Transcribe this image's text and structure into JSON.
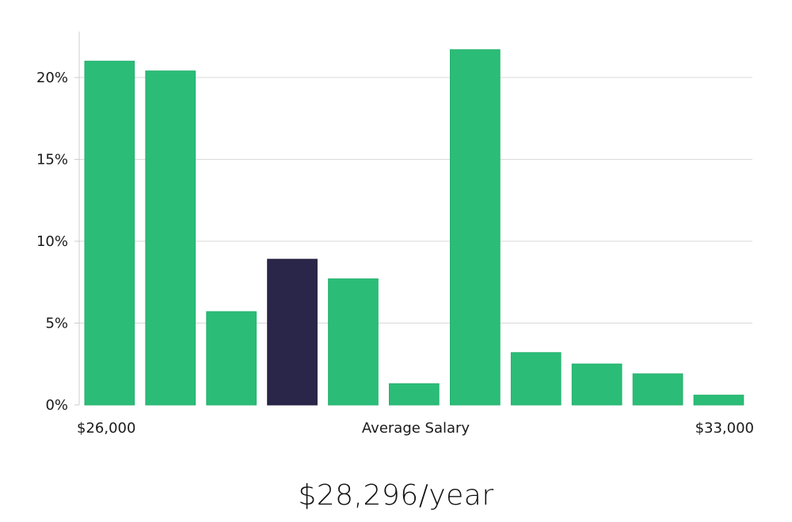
{
  "colors": {
    "bar": "#2bbd77",
    "highlight": "#29264a",
    "grid": "#d9d9d9",
    "axis": "#cccccc",
    "text": "#1a1a1a"
  },
  "summary": {
    "salary_text": "$28,296/year"
  },
  "chart_data": {
    "type": "bar",
    "title": "",
    "xlabel": "Average Salary",
    "ylabel": "",
    "x_tick_left": "$26,000",
    "x_tick_right": "$33,000",
    "y_ticks": [
      "0%",
      "5%",
      "10%",
      "15%",
      "20%"
    ],
    "y_tick_values": [
      0,
      5,
      10,
      15,
      20
    ],
    "ylim": [
      0,
      22.8
    ],
    "grid": true,
    "highlight_index": 3,
    "values": [
      21.0,
      20.4,
      5.7,
      8.9,
      7.7,
      1.3,
      21.7,
      3.2,
      2.5,
      1.9,
      0.6
    ]
  }
}
